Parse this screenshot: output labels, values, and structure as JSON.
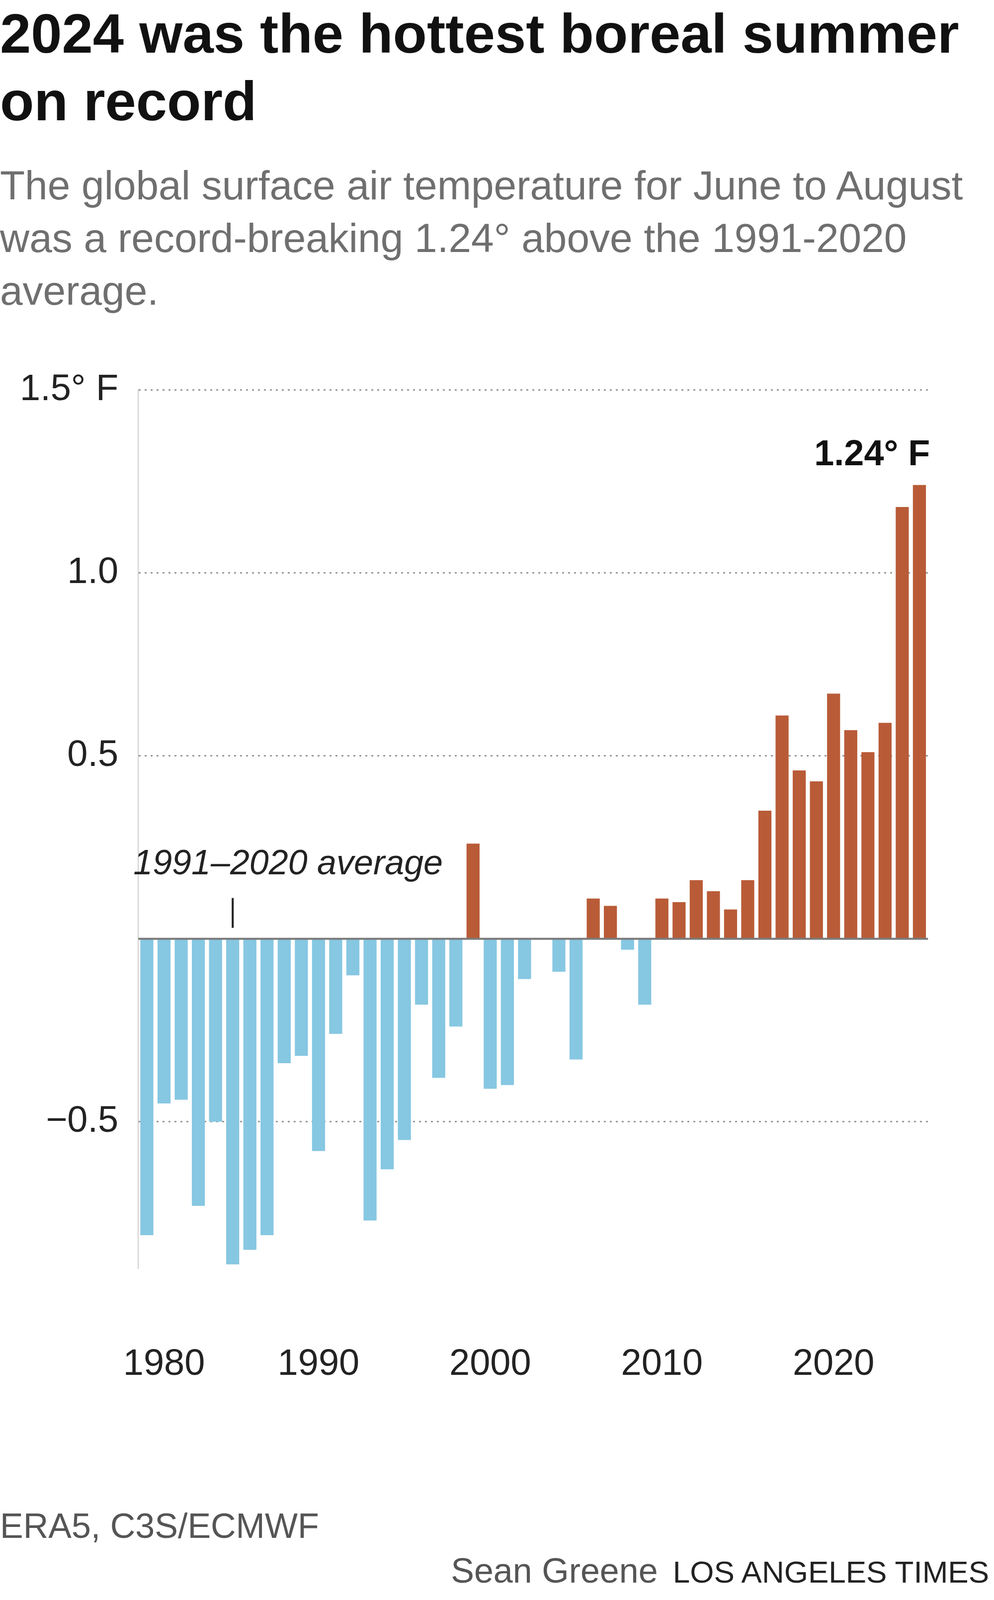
{
  "chart_data": {
    "type": "bar",
    "title": "2024 was the hottest boreal summer on record",
    "subtitle": "The global surface air temperature for June to August was a record-breaking 1.24° above the 1991-2020 average.",
    "categories": [
      null,
      "1980",
      null,
      null,
      null,
      null,
      null,
      null,
      null,
      null,
      "1990",
      null,
      null,
      null,
      null,
      null,
      null,
      null,
      null,
      null,
      "2000",
      null,
      null,
      null,
      null,
      null,
      null,
      null,
      null,
      null,
      "2010",
      null,
      null,
      null,
      null,
      null,
      null,
      null,
      null,
      null,
      "2020",
      null,
      null,
      null,
      null,
      null
    ],
    "values": [
      -0.81,
      -0.45,
      -0.44,
      -0.73,
      -0.5,
      -0.89,
      -0.85,
      -0.81,
      -0.34,
      -0.32,
      -0.58,
      -0.26,
      -0.1,
      -0.77,
      -0.63,
      -0.55,
      -0.18,
      -0.38,
      -0.24,
      0.26,
      -0.41,
      -0.4,
      -0.11,
      0,
      -0.09,
      -0.33,
      0.11,
      0.09,
      -0.03,
      -0.18,
      0.11,
      0.1,
      0.16,
      0.13,
      0.08,
      0.16,
      0.35,
      0.61,
      0.46,
      0.43,
      0.67,
      0.57,
      0.51,
      0.59,
      1.18,
      1.24
    ],
    "colors": [
      "#86c7e2",
      "#86c7e2",
      "#86c7e2",
      "#86c7e2",
      "#86c7e2",
      "#86c7e2",
      "#86c7e2",
      "#86c7e2",
      "#86c7e2",
      "#86c7e2",
      "#86c7e2",
      "#86c7e2",
      "#86c7e2",
      "#86c7e2",
      "#86c7e2",
      "#86c7e2",
      "#86c7e2",
      "#86c7e2",
      "#86c7e2",
      "#b95b37",
      "#86c7e2",
      "#86c7e2",
      "#86c7e2",
      "#86c7e2",
      "#86c7e2",
      "#86c7e2",
      "#b95b37",
      "#b95b37",
      "#86c7e2",
      "#86c7e2",
      "#b95b37",
      "#b95b37",
      "#b95b37",
      "#b95b37",
      "#b95b37",
      "#b95b37",
      "#b95b37",
      "#b95b37",
      "#b95b37",
      "#b95b37",
      "#b95b37",
      "#b95b37",
      "#b95b37",
      "#b95b37",
      "#b95b37",
      "#b95b37"
    ],
    "ylim": [
      -0.9,
      1.5
    ],
    "yticks": [
      {
        "value": -0.5,
        "label": "−0.5"
      },
      0.5,
      {
        "value": 1.0,
        "label": "1.0"
      },
      {
        "value": 1.5,
        "label": "1.5° F"
      }
    ],
    "grid": true,
    "annotations": [
      "1991–2020 average",
      "1.24° F"
    ],
    "source": "ERA5, C3S/ECMWF",
    "credit": "Sean Greene",
    "publisher": "LOS ANGELES TIMES"
  }
}
